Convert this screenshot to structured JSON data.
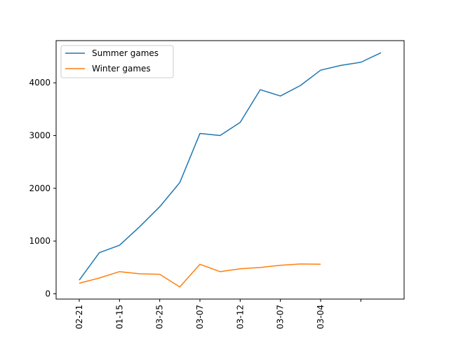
{
  "chart_data": {
    "type": "line",
    "title": "",
    "xlabel": "",
    "ylabel": "",
    "x_tick_labels": [
      "02-21",
      "01-15",
      "03-25",
      "03-07",
      "03-12",
      "03-07",
      "03-04",
      ""
    ],
    "y_ticks": [
      0,
      1000,
      2000,
      3000,
      4000
    ],
    "ylim": [
      -100,
      4800
    ],
    "grid": false,
    "legend_position": "upper left",
    "series": [
      {
        "name": "Summer games",
        "color": "#1f77b4",
        "values": [
          260,
          780,
          920,
          1270,
          1650,
          2110,
          3040,
          3000,
          3250,
          3870,
          3750,
          3950,
          4240,
          4330,
          4390,
          4570
        ]
      },
      {
        "name": "Winter games",
        "color": "#ff7f0e",
        "values": [
          200,
          300,
          420,
          380,
          370,
          130,
          560,
          420,
          475,
          500,
          540,
          565,
          560
        ]
      }
    ]
  }
}
